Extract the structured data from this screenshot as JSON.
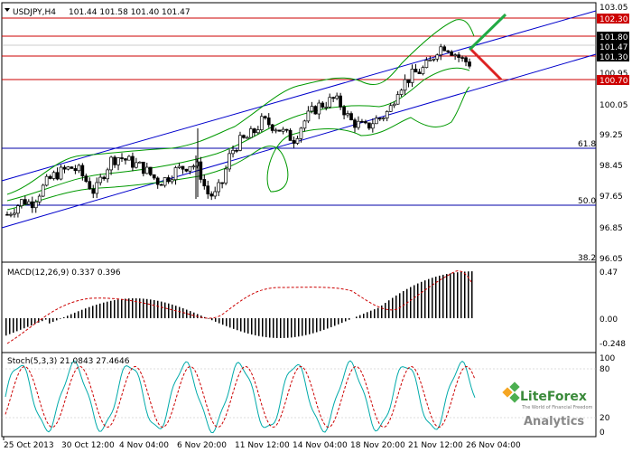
{
  "header": {
    "symbol": "USDJPY,H4",
    "ohlc": "101.44 101.58 101.40 101.47"
  },
  "price_axis": {
    "ticks": [
      "103.05",
      "102.30",
      "101.80",
      "101.47",
      "101.30",
      "100.95",
      "100.70",
      "100.05",
      "99.25",
      "98.45",
      "97.65",
      "96.85",
      "96.05"
    ],
    "boxed_labels": [
      {
        "text": "102.30",
        "bg": "#cc0000"
      },
      {
        "text": "101.80",
        "bg": "#000000"
      },
      {
        "text": "101.47",
        "bg": "#000000"
      },
      {
        "text": "101.30",
        "bg": "#000000"
      },
      {
        "text": "100.70",
        "bg": "#cc0000"
      }
    ]
  },
  "fib_labels": [
    "61.8",
    "50.0",
    "38.2"
  ],
  "macd": {
    "label": "MACD(12,26,9) 0.337 0.396",
    "ticks": [
      "0.47",
      "0.00",
      "-0.248"
    ]
  },
  "stoch": {
    "label": "Stoch(5,3,3) 21.0843 27.4646",
    "ticks": [
      "100",
      "80",
      "20",
      "0"
    ]
  },
  "time_axis": [
    "25 Oct 2013",
    "30 Oct 12:00",
    "4 Nov 04:00",
    "6 Nov 20:00",
    "11 Nov 12:00",
    "14 Nov 04:00",
    "18 Nov 20:00",
    "21 Nov 12:00",
    "26 Nov 04:00"
  ],
  "logo": {
    "brand": "LiteForex",
    "tagline": "The World of Financial Freedom",
    "product": "Analytics"
  },
  "colors": {
    "support_resistance": "#cc0000",
    "channel": "#0000cc",
    "bollinger": "#009900",
    "macd_signal": "#cc0000",
    "stoch_main": "#00aaaa",
    "arrow_up": "#22aa44",
    "arrow_down": "#dd2222"
  },
  "chart_data": {
    "type": "candlestick",
    "price_range": [
      96.05,
      103.05
    ],
    "close_path": [
      97.3,
      97.5,
      97.7,
      97.6,
      97.9,
      98.2,
      98.4,
      98.5,
      98.6,
      98.5,
      98.2,
      97.9,
      98.4,
      98.8,
      98.9,
      98.8,
      98.7,
      98.6,
      98.4,
      98.2,
      98.3,
      98.5,
      98.6,
      98.7,
      98.6,
      97.9,
      97.8,
      98.2,
      99.0,
      99.3,
      99.4,
      99.6,
      99.9,
      99.8,
      99.7,
      99.5,
      99.4,
      99.8,
      100.1,
      100.3,
      100.4,
      100.5,
      100.3,
      99.9,
      99.8,
      99.7,
      99.9,
      100.0,
      100.2,
      100.8,
      101.0,
      101.2,
      101.3,
      101.5,
      101.9,
      102.0,
      101.8,
      101.6,
      101.5
    ],
    "horizontal_levels": [
      102.3,
      101.8,
      101.3,
      100.7
    ]
  }
}
